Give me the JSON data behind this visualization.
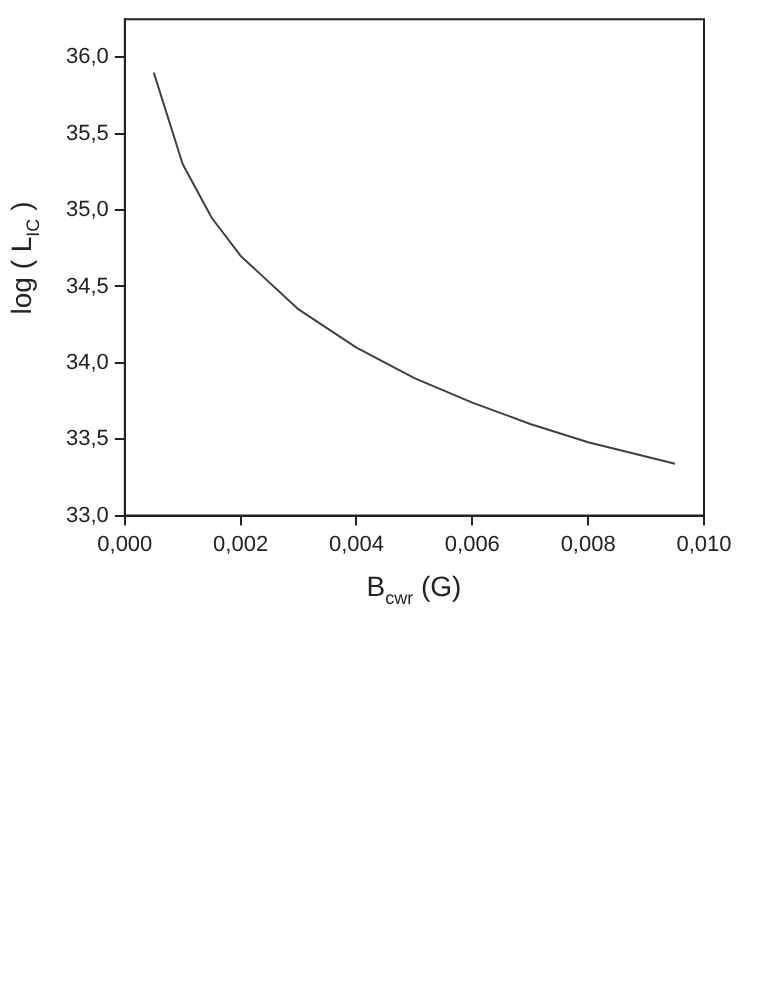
{
  "chart_data": {
    "type": "line",
    "xlabel": "B$_{cwr}$ (G)",
    "ylabel": "log ( L$_{IC}$ )",
    "x": [
      0.0005,
      0.001,
      0.0015,
      0.002,
      0.003,
      0.004,
      0.005,
      0.006,
      0.007,
      0.008,
      0.0095
    ],
    "series": [
      {
        "color": "#404040",
        "values": [
          35.9,
          35.3,
          34.95,
          34.7,
          34.35,
          34.1,
          33.9,
          33.74,
          33.6,
          33.48,
          33.34
        ]
      }
    ],
    "xlim": [
      0,
      0.01
    ],
    "ylim": [
      33,
      36.25
    ],
    "xticks": [
      {
        "value": 0,
        "label": "0,000"
      },
      {
        "value": 0.002,
        "label": "0,002"
      },
      {
        "value": 0.004,
        "label": "0,004"
      },
      {
        "value": 0.006,
        "label": "0,006"
      },
      {
        "value": 0.008,
        "label": "0,008"
      },
      {
        "value": 0.01,
        "label": "0,010"
      }
    ],
    "yticks": [
      {
        "value": 33,
        "label": "33,0"
      },
      {
        "value": 33.5,
        "label": "33,5"
      },
      {
        "value": 34,
        "label": "34,0"
      },
      {
        "value": 34.5,
        "label": "34,5"
      },
      {
        "value": 35,
        "label": "35,0"
      },
      {
        "value": 35.5,
        "label": "35,5"
      },
      {
        "value": 36,
        "label": "36,0"
      }
    ],
    "grid": false,
    "legend": false,
    "marker": "none",
    "line_style": "solid"
  }
}
